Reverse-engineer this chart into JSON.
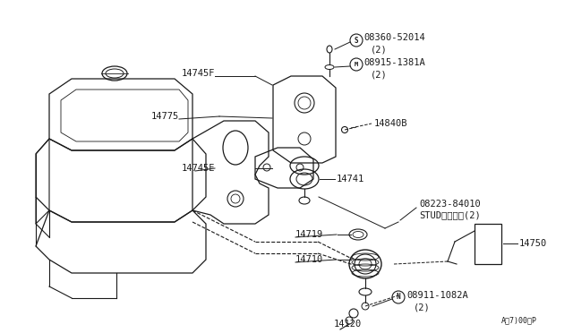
{
  "bg_color": "#ffffff",
  "line_color": "#1a1a1a",
  "figsize": [
    6.4,
    3.72
  ],
  "dpi": 100,
  "parts_labels": {
    "S_label": "08360-52014",
    "S_sub": "(2)",
    "M_label": "08915-1381A",
    "M_sub": "(2)",
    "label_14840B": "14840B",
    "label_14745F": "14745F",
    "label_14775": "14775",
    "label_14745E": "14745E",
    "label_14741": "14741",
    "stud_label": "08223-84010",
    "stud_sub": "STUDスタッド(2)",
    "label_14719": "14719",
    "label_14710": "14710",
    "N_label": "08911-1082A",
    "N_sub": "(2)",
    "label_14120": "14120",
    "label_14750": "14750",
    "watermark": "Aで7)00・P"
  }
}
